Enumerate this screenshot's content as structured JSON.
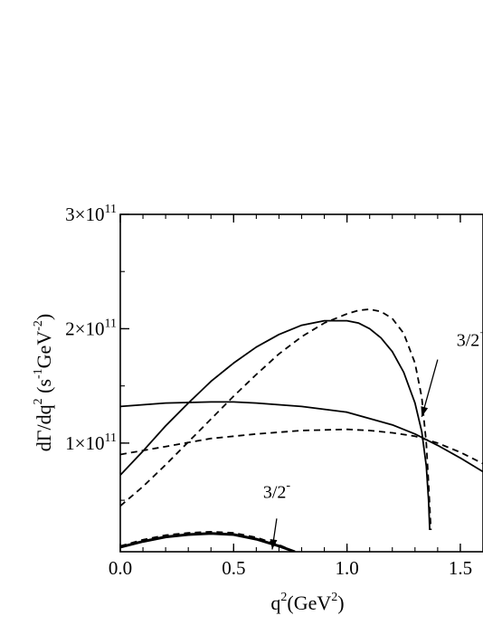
{
  "chart_data": {
    "type": "line",
    "title": "",
    "xlabel": {
      "base": "q",
      "sup": "2",
      "unit_open": "(GeV",
      "unit_sup": "2",
      "unit_close": ")"
    },
    "ylabel": {
      "a": "dΓ/dq",
      "a_sup": "2",
      "b": " (s",
      "b_sup": "-1",
      "c": "GeV",
      "c_sup": "-2",
      "d": ")"
    },
    "xlim": [
      0,
      1.6
    ],
    "ylim": [
      5000000000,
      300000000000
    ],
    "x_ticks": [
      {
        "value": 0.0,
        "label": "0.0"
      },
      {
        "value": 0.5,
        "label": "0.5"
      },
      {
        "value": 1.0,
        "label": "1.0"
      },
      {
        "value": 1.5,
        "label": "1.5"
      }
    ],
    "y_ticks": [
      {
        "value": 100000000000,
        "mant": "1×10",
        "exp": "11"
      },
      {
        "value": 200000000000,
        "mant": "2×10",
        "exp": "11"
      },
      {
        "value": 300000000000,
        "mant": "3×10",
        "exp": "11"
      }
    ],
    "grid": false,
    "series": [
      {
        "style": "solid",
        "width": 1.8,
        "points": [
          [
            0,
            72000000000
          ],
          [
            0.1,
            93000000000
          ],
          [
            0.2,
            115000000000
          ],
          [
            0.3,
            135000000000
          ],
          [
            0.4,
            154000000000
          ],
          [
            0.5,
            170000000000
          ],
          [
            0.6,
            184000000000
          ],
          [
            0.7,
            195000000000
          ],
          [
            0.8,
            203000000000
          ],
          [
            0.9,
            207000000000
          ],
          [
            1.0,
            207000000000
          ],
          [
            1.05,
            205000000000
          ],
          [
            1.1,
            200000000000
          ],
          [
            1.15,
            192000000000
          ],
          [
            1.2,
            180000000000
          ],
          [
            1.25,
            162000000000
          ],
          [
            1.3,
            135000000000
          ],
          [
            1.33,
            110000000000
          ],
          [
            1.35,
            80000000000
          ],
          [
            1.36,
            50000000000
          ],
          [
            1.365,
            24000000000
          ]
        ]
      },
      {
        "style": "dashed",
        "width": 1.8,
        "points": [
          [
            0,
            45000000000
          ],
          [
            0.1,
            62000000000
          ],
          [
            0.2,
            81000000000
          ],
          [
            0.3,
            101000000000
          ],
          [
            0.4,
            121000000000
          ],
          [
            0.5,
            141000000000
          ],
          [
            0.6,
            160000000000
          ],
          [
            0.7,
            178000000000
          ],
          [
            0.8,
            193000000000
          ],
          [
            0.9,
            205000000000
          ],
          [
            1.0,
            213000000000
          ],
          [
            1.05,
            216000000000
          ],
          [
            1.1,
            217000000000
          ],
          [
            1.15,
            215000000000
          ],
          [
            1.2,
            209000000000
          ],
          [
            1.25,
            196000000000
          ],
          [
            1.3,
            170000000000
          ],
          [
            1.33,
            140000000000
          ],
          [
            1.35,
            100000000000
          ],
          [
            1.36,
            65000000000
          ],
          [
            1.37,
            24000000000
          ]
        ]
      },
      {
        "style": "solid",
        "width": 1.8,
        "points": [
          [
            0,
            132000000000
          ],
          [
            0.2,
            135000000000
          ],
          [
            0.4,
            136000000000
          ],
          [
            0.5,
            136000000000
          ],
          [
            0.6,
            135000000000
          ],
          [
            0.8,
            132000000000
          ],
          [
            1.0,
            127000000000
          ],
          [
            1.2,
            116000000000
          ],
          [
            1.3,
            108000000000
          ],
          [
            1.4,
            98000000000
          ],
          [
            1.5,
            87000000000
          ],
          [
            1.6,
            75000000000
          ]
        ]
      },
      {
        "style": "dashed",
        "width": 1.8,
        "points": [
          [
            0,
            90000000000
          ],
          [
            0.2,
            97000000000
          ],
          [
            0.4,
            104000000000
          ],
          [
            0.6,
            108000000000
          ],
          [
            0.8,
            111000000000
          ],
          [
            1.0,
            112000000000
          ],
          [
            1.1,
            111000000000
          ],
          [
            1.2,
            109000000000
          ],
          [
            1.3,
            106000000000
          ],
          [
            1.4,
            100000000000
          ],
          [
            1.5,
            92000000000
          ],
          [
            1.6,
            82000000000
          ]
        ]
      },
      {
        "style": "solid",
        "width": 3.0,
        "points": [
          [
            0,
            9000000000
          ],
          [
            0.1,
            14000000000
          ],
          [
            0.2,
            18000000000
          ],
          [
            0.3,
            20000000000
          ],
          [
            0.4,
            21000000000
          ],
          [
            0.5,
            20000000000
          ],
          [
            0.6,
            16000000000
          ],
          [
            0.7,
            10000000000
          ],
          [
            0.77,
            5000000000
          ]
        ]
      },
      {
        "style": "dashed",
        "width": 1.8,
        "points": [
          [
            0,
            10000000000
          ],
          [
            0.1,
            15500000000
          ],
          [
            0.2,
            19500000000
          ],
          [
            0.3,
            21500000000
          ],
          [
            0.4,
            22500000000
          ],
          [
            0.5,
            21500000000
          ],
          [
            0.6,
            17500000000
          ],
          [
            0.7,
            11000000000
          ],
          [
            0.77,
            5000000000
          ]
        ]
      }
    ],
    "annotations": [
      {
        "base": "3/2",
        "sup": "+",
        "text_at": [
          1.55,
          185000000000
        ],
        "arrow_from": [
          1.4,
          173000000000
        ],
        "arrow_to": [
          1.33,
          123000000000
        ]
      },
      {
        "base": "3/2",
        "sup": "-",
        "text_at": [
          0.69,
          52000000000
        ],
        "arrow_from": [
          0.69,
          34000000000
        ],
        "arrow_to": [
          0.67,
          7000000000
        ]
      }
    ]
  }
}
